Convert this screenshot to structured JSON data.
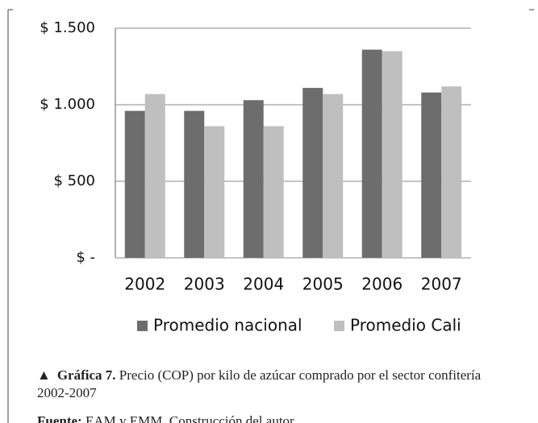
{
  "chart_data": {
    "type": "bar",
    "categories": [
      "2002",
      "2003",
      "2004",
      "2005",
      "2006",
      "2007"
    ],
    "series": [
      {
        "name": "Promedio nacional",
        "color": "#6d6d6d",
        "values": [
          960,
          960,
          1030,
          1110,
          1360,
          1080
        ]
      },
      {
        "name": "Promedio Cali",
        "color": "#bfbfbf",
        "values": [
          1070,
          860,
          860,
          1070,
          1350,
          1120
        ]
      }
    ],
    "ylim": [
      0,
      1500
    ],
    "yticks": [
      {
        "value": 0,
        "label": "$ -"
      },
      {
        "value": 500,
        "label": "$ 500"
      },
      {
        "value": 1000,
        "label": "$ 1.000"
      },
      {
        "value": 1500,
        "label": "$ 1.500"
      }
    ],
    "grid": true,
    "legend": "bottom"
  },
  "caption": {
    "label": "Gráfica 7.",
    "text": "Precio (COP) por kilo de azúcar comprado por el sector confitería  2002-2007"
  },
  "source": {
    "label": "Fuente:",
    "text": "EAM y EMM. Construcción del autor"
  }
}
